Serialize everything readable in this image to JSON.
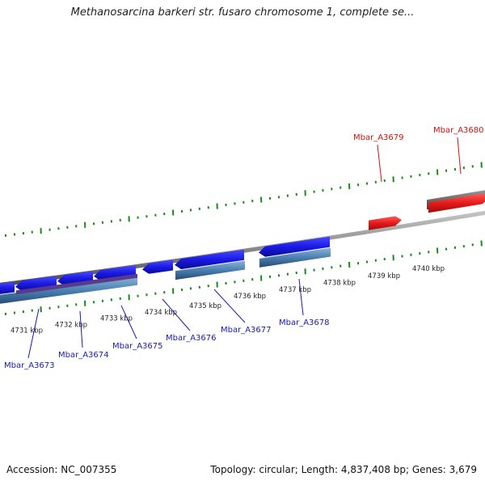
{
  "title": "Methanosarcina barkeri str. fusaro chromosome 1, complete se...",
  "footer": {
    "accession": "Accession: NC_007355",
    "summary": "Topology: circular; Length: 4,837,408 bp; Genes: 3,679"
  },
  "colors": {
    "gene_forward": "#1a1ae6",
    "gene_highlight": "#e61a1a",
    "gene_other": "#6e6e6e",
    "product": "#4a7fb0",
    "product_dark": "#5a3a8a",
    "tick": "#1a8a1a",
    "backbone": "#8a8a8a",
    "label_blue": "#1a1ab0",
    "label_red": "#d01010"
  },
  "scale_labels": [
    "4731 kbp",
    "4732 kbp",
    "4733 kbp",
    "4734 kbp",
    "4735 kbp",
    "4736 kbp",
    "4737 kbp",
    "4738 kbp",
    "4739 kbp",
    "4740 kbp"
  ],
  "gene_labels": [
    {
      "text": "Mbar_A3673",
      "color": "blue"
    },
    {
      "text": "Mbar_A3674",
      "color": "blue"
    },
    {
      "text": "Mbar_A3675",
      "color": "blue"
    },
    {
      "text": "Mbar_A3676",
      "color": "blue"
    },
    {
      "text": "Mbar_A3677",
      "color": "blue"
    },
    {
      "text": "Mbar_A3678",
      "color": "blue"
    },
    {
      "text": "Mbar_A3679",
      "color": "red"
    },
    {
      "text": "Mbar_A3680",
      "color": "red"
    }
  ]
}
